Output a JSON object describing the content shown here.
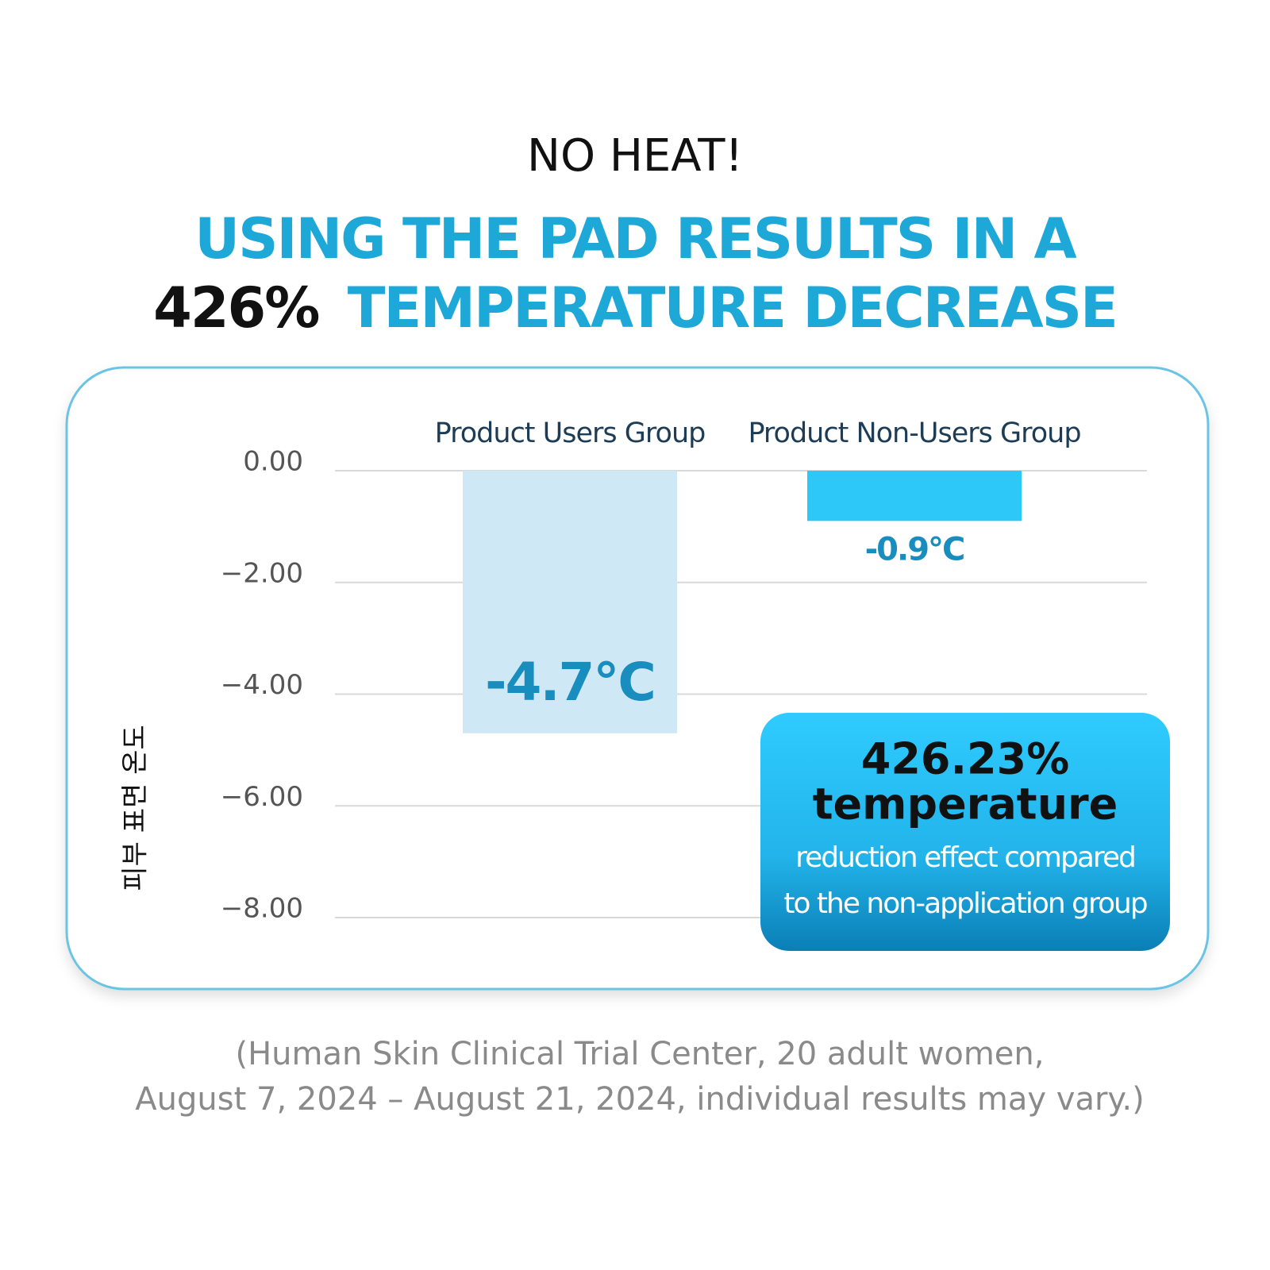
{
  "chart_data": {
    "type": "bar",
    "title": "NO HEAT!",
    "headline": [
      "USING THE PAD RESULTS IN A",
      "426%",
      "TEMPERATURE DECREASE"
    ],
    "ylabel": "피부 표면 온도",
    "categories": [
      "Product Users Group",
      "Product Non-Users Group"
    ],
    "values": [
      -4.7,
      -0.9
    ],
    "value_labels": [
      "-4.7°C",
      "-0.9°C"
    ],
    "colors": [
      "#cfe8f5",
      "#2ec8f8"
    ],
    "ylim": [
      -8,
      0
    ],
    "yticks": [
      {
        "value": 0,
        "label": "0.00"
      },
      {
        "value": -2,
        "label": "−2.00"
      },
      {
        "value": -4,
        "label": "−4.00"
      },
      {
        "value": -6,
        "label": "−6.00"
      },
      {
        "value": -8,
        "label": "−8.00"
      }
    ],
    "grid": true,
    "annotation": [
      "426.23%",
      "temperature",
      "reduction effect compared",
      "to the non-application group"
    ],
    "note": [
      "(Human Skin Clinical Trial Center, 20 adult women,",
      "August 7, 2024 – August 21, 2024, individual results may vary.)"
    ]
  }
}
